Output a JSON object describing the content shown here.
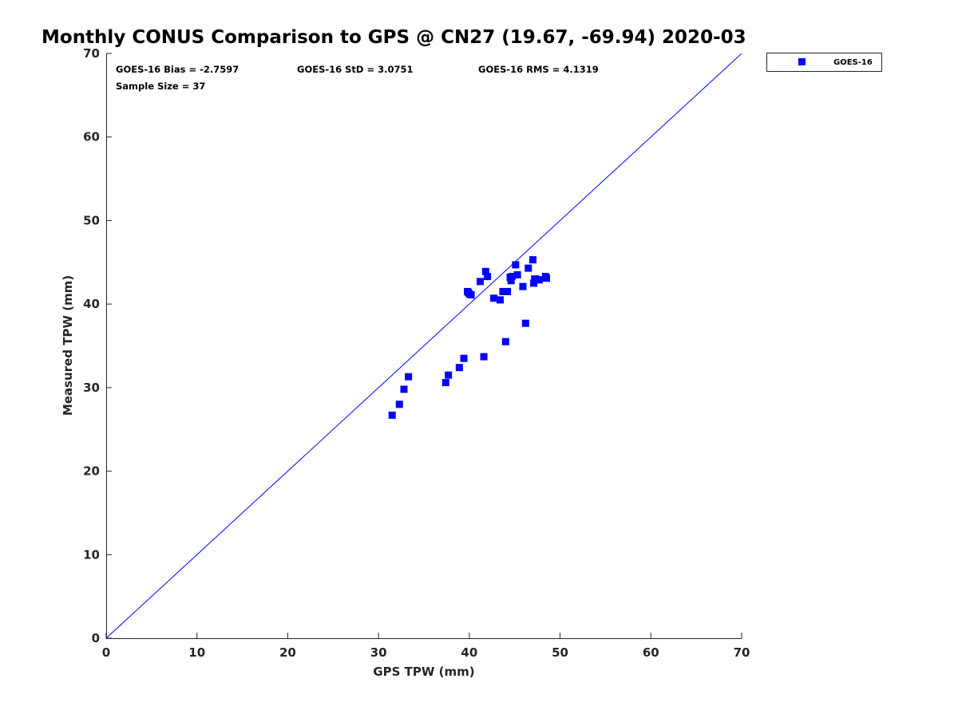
{
  "chart_data": {
    "type": "scatter",
    "title": "Monthly CONUS Comparison to GPS @ CN27 (19.67, -69.94) 2020-03",
    "xlabel": "GPS TPW (mm)",
    "ylabel": "Measured TPW (mm)",
    "xlim": [
      0,
      70
    ],
    "ylim": [
      0,
      70
    ],
    "xticks": [
      0,
      10,
      20,
      30,
      40,
      50,
      60,
      70
    ],
    "yticks": [
      0,
      10,
      20,
      30,
      40,
      50,
      60,
      70
    ],
    "grid": false,
    "legend_position": "outside-top-right",
    "reference_line": {
      "name": "1:1 line",
      "from": [
        0,
        0
      ],
      "to": [
        70,
        70
      ],
      "color": "#0000ff"
    },
    "stats": {
      "bias": "GOES-16 Bias = -2.7597",
      "std": "GOES-16 StD = 3.0751",
      "rms": "GOES-16 RMS = 4.1319",
      "sample": "Sample Size = 37"
    },
    "series": [
      {
        "name": "GOES-16",
        "color": "#0000ff",
        "marker": "square",
        "x": [
          31.5,
          32.3,
          32.8,
          33.3,
          37.4,
          37.7,
          38.9,
          39.4,
          41.6,
          44.0,
          46.2,
          39.8,
          40.0,
          40.2,
          41.2,
          41.8,
          42.0,
          42.7,
          43.4,
          43.7,
          44.2,
          44.5,
          44.6,
          45.1,
          45.3,
          45.9,
          46.5,
          47.0,
          47.1,
          47.2,
          47.7,
          48.4,
          48.5,
          47.3,
          44.7,
          47.6,
          39.9
        ],
        "y": [
          26.7,
          28.0,
          29.8,
          31.3,
          30.6,
          31.5,
          32.4,
          33.5,
          33.7,
          35.5,
          37.7,
          41.5,
          41.2,
          41.1,
          42.7,
          43.9,
          43.3,
          40.7,
          40.5,
          41.5,
          41.5,
          43.2,
          42.8,
          44.7,
          43.5,
          42.1,
          44.3,
          45.3,
          42.5,
          43.0,
          42.9,
          43.3,
          43.1,
          43.0,
          43.3,
          42.9,
          41.4
        ]
      }
    ]
  }
}
